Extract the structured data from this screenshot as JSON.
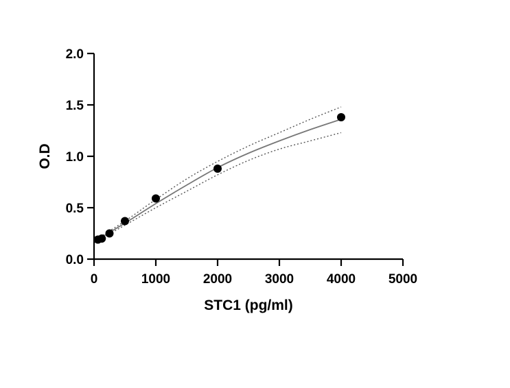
{
  "chart_data": {
    "type": "scatter",
    "title": "",
    "xlabel": "STC1 (pg/ml)",
    "ylabel": "O.D",
    "xlim": [
      0,
      5000
    ],
    "ylim": [
      0,
      2.0
    ],
    "x_ticks": [
      "0",
      "1000",
      "2000",
      "3000",
      "4000",
      "5000"
    ],
    "y_ticks": [
      "0.0",
      "0.5",
      "1.0",
      "1.5",
      "2.0"
    ],
    "grid": false,
    "legend": "none",
    "points": [
      {
        "x": 62.5,
        "y": 0.19
      },
      {
        "x": 125,
        "y": 0.2
      },
      {
        "x": 250,
        "y": 0.25
      },
      {
        "x": 500,
        "y": 0.37
      },
      {
        "x": 1000,
        "y": 0.59
      },
      {
        "x": 2000,
        "y": 0.88
      },
      {
        "x": 4000,
        "y": 1.38
      }
    ],
    "fit_curve": {
      "style": "solid",
      "color": "#777777",
      "points": [
        [
          0,
          0.17
        ],
        [
          500,
          0.35
        ],
        [
          1000,
          0.54
        ],
        [
          1500,
          0.72
        ],
        [
          2000,
          0.89
        ],
        [
          2500,
          1.03
        ],
        [
          3000,
          1.15
        ],
        [
          3500,
          1.26
        ],
        [
          4000,
          1.36
        ]
      ]
    },
    "confidence_band": {
      "style": "dotted",
      "color": "#555555",
      "upper": [
        [
          0,
          0.18
        ],
        [
          500,
          0.37
        ],
        [
          1000,
          0.58
        ],
        [
          1500,
          0.78
        ],
        [
          2000,
          0.95
        ],
        [
          2500,
          1.1
        ],
        [
          3000,
          1.23
        ],
        [
          3500,
          1.36
        ],
        [
          4000,
          1.48
        ]
      ],
      "lower": [
        [
          0,
          0.16
        ],
        [
          500,
          0.33
        ],
        [
          1000,
          0.5
        ],
        [
          1500,
          0.66
        ],
        [
          2000,
          0.82
        ],
        [
          2500,
          0.96
        ],
        [
          3000,
          1.07
        ],
        [
          3500,
          1.15
        ],
        [
          4000,
          1.23
        ]
      ]
    },
    "colors": {
      "marker": "#000000",
      "axis": "#000000"
    }
  }
}
